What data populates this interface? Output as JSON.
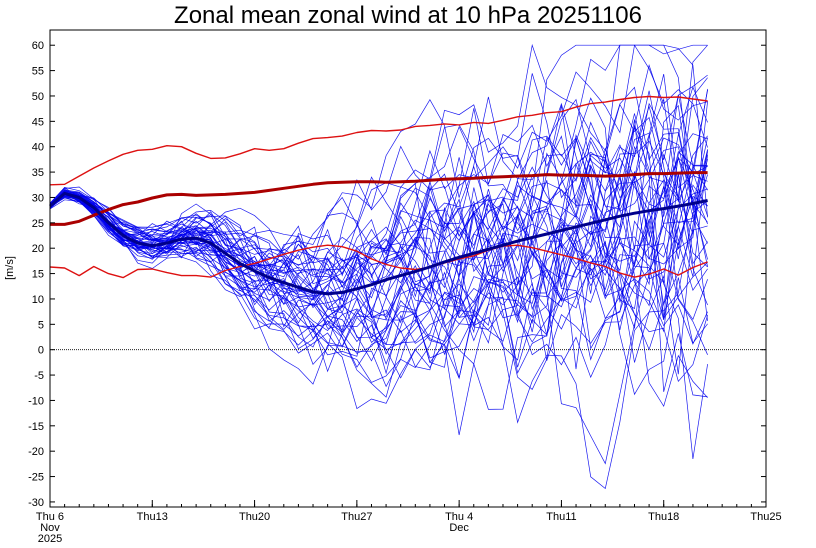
{
  "chart_data": {
    "type": "line",
    "title": "Zonal mean zonal wind at 10 hPa 20251106",
    "ylabel": "[m/s]",
    "ylim": [
      -31,
      63
    ],
    "yticks": [
      60,
      55,
      50,
      45,
      40,
      35,
      30,
      25,
      20,
      15,
      10,
      5,
      0,
      -5,
      -10,
      -15,
      -20,
      -25,
      -30
    ],
    "x_day_range": [
      0,
      49
    ],
    "xticks": [
      {
        "day": 0,
        "lines": [
          "Thu 6",
          "Nov",
          "2025"
        ]
      },
      {
        "day": 7,
        "lines": [
          "Thu13"
        ]
      },
      {
        "day": 14,
        "lines": [
          "Thu20"
        ]
      },
      {
        "day": 21,
        "lines": [
          "Thu27"
        ]
      },
      {
        "day": 28,
        "lines": [
          "Thu 4",
          "Dec"
        ]
      },
      {
        "day": 35,
        "lines": [
          "Thu11"
        ]
      },
      {
        "day": 42,
        "lines": [
          "Thu18"
        ]
      },
      {
        "day": 49,
        "lines": [
          "Thu25"
        ]
      }
    ],
    "zero_line": true,
    "colors": {
      "ensemble": "#0000ee",
      "ensemble_highlight": "#00008b",
      "climatology": "#dd1111",
      "climatology_mean": "#aa0000"
    },
    "series": [
      {
        "role": "climatology_max",
        "color": "#dd1111",
        "width": 1.4,
        "x": [
          0,
          1,
          2,
          3,
          4,
          5,
          6,
          7,
          8,
          9,
          10,
          11,
          12,
          13,
          14,
          15,
          16,
          17,
          18,
          19,
          20,
          21,
          22,
          23,
          24,
          25,
          26,
          27,
          28,
          29,
          30,
          31,
          32,
          33,
          34,
          35,
          36,
          37,
          38,
          39,
          40,
          41,
          42,
          43,
          44,
          45
        ],
        "y": [
          32.5,
          32.6,
          34.2,
          35.8,
          37.2,
          38.5,
          39.3,
          39.5,
          40.2,
          40.0,
          38.7,
          37.7,
          37.8,
          38.6,
          39.6,
          39.3,
          39.6,
          40.7,
          41.6,
          41.8,
          42.1,
          42.8,
          43.2,
          43.1,
          43.3,
          44.0,
          44.2,
          44.5,
          44.3,
          44.8,
          44.6,
          45.2,
          45.9,
          46.2,
          46.7,
          46.9,
          47.8,
          48.5,
          48.8,
          49.3,
          49.7,
          49.9,
          49.7,
          49.8,
          49.4,
          49.0
        ]
      },
      {
        "role": "climatology_mean",
        "color": "#aa0000",
        "width": 3,
        "x": [
          0,
          1,
          2,
          3,
          4,
          5,
          6,
          7,
          8,
          9,
          10,
          11,
          12,
          13,
          14,
          15,
          16,
          17,
          18,
          19,
          20,
          21,
          22,
          23,
          24,
          25,
          26,
          27,
          28,
          29,
          30,
          31,
          32,
          33,
          34,
          35,
          36,
          37,
          38,
          39,
          40,
          41,
          42,
          43,
          44,
          45
        ],
        "y": [
          24.7,
          24.7,
          25.3,
          26.5,
          27.6,
          28.6,
          29.1,
          29.9,
          30.5,
          30.6,
          30.4,
          30.5,
          30.6,
          30.8,
          31.0,
          31.4,
          31.8,
          32.2,
          32.6,
          32.9,
          33.0,
          33.1,
          33.1,
          33.0,
          33.1,
          33.2,
          33.4,
          33.6,
          33.7,
          33.8,
          34.0,
          34.1,
          34.2,
          34.3,
          34.5,
          34.4,
          34.4,
          34.3,
          34.2,
          34.3,
          34.5,
          34.7,
          34.7,
          34.8,
          34.9,
          34.9
        ]
      },
      {
        "role": "climatology_min",
        "color": "#dd1111",
        "width": 1.4,
        "x": [
          0,
          1,
          2,
          3,
          4,
          5,
          6,
          7,
          8,
          9,
          10,
          11,
          12,
          13,
          14,
          15,
          16,
          17,
          18,
          19,
          20,
          21,
          22,
          23,
          24,
          25,
          26,
          27,
          28,
          29,
          30,
          31,
          32,
          33,
          34,
          35,
          36,
          37,
          38,
          39,
          40,
          41,
          42,
          43,
          44,
          45
        ],
        "y": [
          16.3,
          16.1,
          14.6,
          16.4,
          15.0,
          14.2,
          15.8,
          15.9,
          15.2,
          14.6,
          14.6,
          14.3,
          15.6,
          16.4,
          17.0,
          17.9,
          18.8,
          19.6,
          20.2,
          20.6,
          20.3,
          19.4,
          17.9,
          16.8,
          16.1,
          15.8,
          16.2,
          17.1,
          17.9,
          18.5,
          19.6,
          20.4,
          20.6,
          20.1,
          19.4,
          18.7,
          18.0,
          17.1,
          16.4,
          15.1,
          14.3,
          14.9,
          15.9,
          14.7,
          16.2,
          17.3
        ]
      },
      {
        "role": "ensemble_mean",
        "color": "#00008b",
        "width": 3,
        "x": [
          0,
          1,
          2,
          3,
          4,
          5,
          6,
          7,
          8,
          9,
          10,
          11,
          12,
          13,
          14,
          15,
          16,
          17,
          18,
          19,
          20,
          21,
          22,
          23,
          24,
          25,
          26,
          27,
          28,
          29,
          30,
          31,
          32,
          33,
          34,
          35,
          36,
          37,
          38,
          39,
          40,
          41,
          42,
          43,
          44,
          45
        ],
        "y": [
          28.3,
          30.8,
          30.0,
          28.0,
          25.0,
          22.5,
          21.0,
          20.5,
          21.0,
          21.8,
          22.0,
          21.0,
          19.0,
          17.0,
          15.5,
          14.2,
          13.2,
          12.3,
          11.4,
          11.0,
          11.3,
          12.0,
          12.8,
          13.8,
          14.6,
          15.4,
          16.3,
          17.3,
          18.2,
          19.0,
          19.8,
          20.6,
          21.4,
          22.1,
          22.8,
          23.5,
          24.2,
          24.9,
          25.6,
          26.3,
          26.9,
          27.4,
          27.8,
          28.3,
          28.8,
          29.4
        ]
      }
    ],
    "ensemble_member_count": 50
  }
}
